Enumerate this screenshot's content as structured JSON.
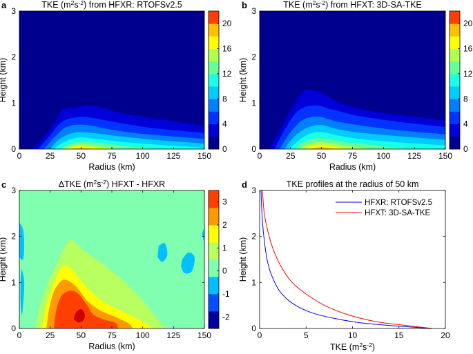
{
  "colors": {
    "jet": [
      "#00008f",
      "#0000d9",
      "#0033ff",
      "#007fff",
      "#00ccff",
      "#19ffe5",
      "#66ff99",
      "#b2ff4c",
      "#ffff00",
      "#ffc000",
      "#ff7f00",
      "#ff3f00",
      "#e50000"
    ],
    "diff": [
      "#0000a0",
      "#0050ff",
      "#00c0ff",
      "#80ffb0",
      "#b8ff60",
      "#ffff00",
      "#ff9900",
      "#ff4000",
      "#cc0000"
    ],
    "hfxr_line": "#0000ff",
    "hfxt_line": "#ff0000"
  },
  "chart_data": [
    {
      "type": "contour",
      "panel_letter": "a",
      "title_pre": "TKE (m",
      "title_sup": "2",
      "title_mid": "s",
      "title_sup2": "-2",
      "title_post": ") from HFXR: RTOFSv2.5",
      "xlabel": "Radius (km)",
      "ylabel": "Height (km)",
      "xlim": [
        0,
        150
      ],
      "ylim": [
        0,
        3
      ],
      "xticks": [
        "0",
        "25",
        "50",
        "75",
        "100",
        "125",
        "150"
      ],
      "yticks": [
        "0",
        "1",
        "2",
        "3"
      ],
      "colorbar_ticks": [
        "0",
        "4",
        "8",
        "12",
        "16",
        "20"
      ],
      "colorbar_range": [
        0,
        22
      ],
      "levels": [
        0,
        2,
        4,
        6,
        8,
        10,
        12,
        14,
        16,
        18,
        20,
        22
      ],
      "contour_tops_km": [
        {
          "level": 2,
          "points": [
            [
              10,
              0
            ],
            [
              18,
              0.2
            ],
            [
              28,
              0.55
            ],
            [
              35,
              0.85
            ],
            [
              45,
              0.9
            ],
            [
              55,
              0.95
            ],
            [
              65,
              0.92
            ],
            [
              80,
              0.8
            ],
            [
              100,
              0.7
            ],
            [
              125,
              0.6
            ],
            [
              150,
              0.5
            ]
          ]
        },
        {
          "level": 4,
          "points": [
            [
              15,
              0
            ],
            [
              25,
              0.3
            ],
            [
              35,
              0.6
            ],
            [
              50,
              0.7
            ],
            [
              65,
              0.65
            ],
            [
              85,
              0.55
            ],
            [
              110,
              0.45
            ],
            [
              150,
              0.35
            ]
          ]
        },
        {
          "level": 6,
          "points": [
            [
              20,
              0
            ],
            [
              30,
              0.3
            ],
            [
              40,
              0.5
            ],
            [
              55,
              0.52
            ],
            [
              75,
              0.42
            ],
            [
              100,
              0.33
            ],
            [
              150,
              0.22
            ]
          ]
        },
        {
          "level": 8,
          "points": [
            [
              25,
              0
            ],
            [
              33,
              0.22
            ],
            [
              45,
              0.36
            ],
            [
              60,
              0.35
            ],
            [
              80,
              0.28
            ],
            [
              110,
              0.2
            ],
            [
              150,
              0.12
            ]
          ]
        },
        {
          "level": 10,
          "points": [
            [
              28,
              0
            ],
            [
              36,
              0.15
            ],
            [
              48,
              0.25
            ],
            [
              62,
              0.22
            ],
            [
              85,
              0.15
            ],
            [
              120,
              0.08
            ],
            [
              150,
              0.03
            ]
          ]
        },
        {
          "level": 12,
          "points": [
            [
              32,
              0
            ],
            [
              40,
              0.1
            ],
            [
              50,
              0.16
            ],
            [
              62,
              0.14
            ],
            [
              85,
              0.07
            ],
            [
              110,
              0
            ]
          ]
        },
        {
          "level": 14,
          "points": [
            [
              35,
              0
            ],
            [
              43,
              0.07
            ],
            [
              50,
              0.1
            ],
            [
              60,
              0.08
            ],
            [
              75,
              0.02
            ],
            [
              80,
              0
            ]
          ]
        },
        {
          "level": 16,
          "points": [
            [
              38,
              0
            ],
            [
              45,
              0.05
            ],
            [
              52,
              0.06
            ],
            [
              62,
              0.03
            ],
            [
              68,
              0
            ]
          ]
        },
        {
          "level": 18,
          "points": [
            [
              41,
              0
            ],
            [
              48,
              0.03
            ],
            [
              56,
              0.02
            ],
            [
              60,
              0
            ]
          ]
        }
      ]
    },
    {
      "type": "contour",
      "panel_letter": "b",
      "title_pre": "TKE (m",
      "title_sup": "2",
      "title_mid": "s",
      "title_sup2": "-2",
      "title_post": ") from HFXT: 3D-SA-TKE",
      "xlabel": "Radius (km)",
      "ylabel": "Height (km)",
      "xlim": [
        0,
        150
      ],
      "ylim": [
        0,
        3
      ],
      "xticks": [
        "0",
        "25",
        "50",
        "75",
        "100",
        "125",
        "150"
      ],
      "yticks": [
        "0",
        "1",
        "2",
        "3"
      ],
      "colorbar_ticks": [
        "0",
        "4",
        "8",
        "12",
        "16",
        "20"
      ],
      "colorbar_range": [
        0,
        22
      ],
      "levels": [
        0,
        2,
        4,
        6,
        8,
        10,
        12,
        14,
        16,
        18,
        20,
        22
      ],
      "contour_tops_km": [
        {
          "level": 2,
          "points": [
            [
              8,
              0
            ],
            [
              15,
              0.35
            ],
            [
              25,
              0.85
            ],
            [
              35,
              1.25
            ],
            [
              42,
              1.28
            ],
            [
              48,
              1.25
            ],
            [
              55,
              1.15
            ],
            [
              65,
              1.0
            ],
            [
              80,
              0.88
            ],
            [
              100,
              0.78
            ],
            [
              125,
              0.7
            ],
            [
              150,
              0.62
            ]
          ]
        },
        {
          "level": 4,
          "points": [
            [
              12,
              0
            ],
            [
              22,
              0.5
            ],
            [
              32,
              0.85
            ],
            [
              45,
              0.95
            ],
            [
              60,
              0.85
            ],
            [
              80,
              0.72
            ],
            [
              110,
              0.6
            ],
            [
              150,
              0.48
            ]
          ]
        },
        {
          "level": 6,
          "points": [
            [
              16,
              0
            ],
            [
              26,
              0.4
            ],
            [
              36,
              0.65
            ],
            [
              48,
              0.7
            ],
            [
              62,
              0.6
            ],
            [
              85,
              0.5
            ],
            [
              115,
              0.4
            ],
            [
              150,
              0.32
            ]
          ]
        },
        {
          "level": 8,
          "points": [
            [
              20,
              0
            ],
            [
              29,
              0.3
            ],
            [
              40,
              0.48
            ],
            [
              50,
              0.52
            ],
            [
              65,
              0.42
            ],
            [
              90,
              0.33
            ],
            [
              150,
              0.2
            ]
          ]
        },
        {
          "level": 10,
          "points": [
            [
              24,
              0
            ],
            [
              32,
              0.2
            ],
            [
              42,
              0.35
            ],
            [
              52,
              0.36
            ],
            [
              68,
              0.27
            ],
            [
              95,
              0.18
            ],
            [
              150,
              0.08
            ]
          ]
        },
        {
          "level": 12,
          "points": [
            [
              28,
              0
            ],
            [
              35,
              0.14
            ],
            [
              45,
              0.23
            ],
            [
              55,
              0.22
            ],
            [
              70,
              0.15
            ],
            [
              100,
              0.06
            ],
            [
              120,
              0
            ]
          ]
        },
        {
          "level": 14,
          "points": [
            [
              32,
              0
            ],
            [
              38,
              0.1
            ],
            [
              48,
              0.15
            ],
            [
              58,
              0.12
            ],
            [
              75,
              0.05
            ],
            [
              90,
              0
            ]
          ]
        },
        {
          "level": 16,
          "points": [
            [
              36,
              0
            ],
            [
              42,
              0.06
            ],
            [
              50,
              0.09
            ],
            [
              60,
              0.05
            ],
            [
              72,
              0
            ]
          ]
        },
        {
          "level": 18,
          "points": [
            [
              40,
              0
            ],
            [
              45,
              0.03
            ],
            [
              50,
              0.04
            ],
            [
              57,
              0.02
            ],
            [
              62,
              0
            ]
          ]
        }
      ]
    },
    {
      "type": "contour",
      "panel_letter": "c",
      "title_pre": "ΔTKE (m",
      "title_sup": "2",
      "title_mid": "s",
      "title_sup2": "-2",
      "title_post": ") HFXT - HFXR",
      "xlabel": "Radius (km)",
      "ylabel": "Height (km)",
      "xlim": [
        0,
        150
      ],
      "ylim": [
        0,
        3
      ],
      "xticks": [
        "0",
        "25",
        "50",
        "75",
        "100",
        "125",
        "150"
      ],
      "yticks": [
        "0",
        "1",
        "2",
        "3"
      ],
      "colorbar_ticks": [
        "-2",
        "-1",
        "0",
        "1",
        "2",
        "3"
      ],
      "colorbar_range": [
        -2.5,
        3.5
      ],
      "background_level": 0
    },
    {
      "type": "line",
      "panel_letter": "d",
      "title": "TKE profiles at the radius of 50 km",
      "xlabel_pre": "TKE (m",
      "xlabel_sup": "2",
      "xlabel_mid": "s",
      "xlabel_sup2": "-2",
      "xlabel_post": ")",
      "ylabel": "Height (km)",
      "xlim": [
        0,
        20
      ],
      "ylim": [
        0,
        3
      ],
      "xticks": [
        "0",
        "5",
        "10",
        "15",
        "20"
      ],
      "yticks": [
        "0",
        "1",
        "2",
        "3"
      ],
      "legend_position": "top-right",
      "series": [
        {
          "name": "HFXR: RTOFSv2.5",
          "color": "#0000ff",
          "points": [
            [
              18.5,
              0
            ],
            [
              15,
              0.05
            ],
            [
              11,
              0.12
            ],
            [
              8,
              0.22
            ],
            [
              5.5,
              0.35
            ],
            [
              3.5,
              0.55
            ],
            [
              2.2,
              0.8
            ],
            [
              1.3,
              1.15
            ],
            [
              0.8,
              1.5
            ],
            [
              0.45,
              2.0
            ],
            [
              0.25,
              2.5
            ],
            [
              0.15,
              3.0
            ]
          ]
        },
        {
          "name": "HFXT: 3D-SA-TKE",
          "color": "#ff0000",
          "points": [
            [
              18.6,
              0
            ],
            [
              16,
              0.06
            ],
            [
              12.5,
              0.15
            ],
            [
              9.5,
              0.3
            ],
            [
              7,
              0.5
            ],
            [
              5,
              0.75
            ],
            [
              3.5,
              1.0
            ],
            [
              2.3,
              1.35
            ],
            [
              1.5,
              1.7
            ],
            [
              0.9,
              2.1
            ],
            [
              0.5,
              2.5
            ],
            [
              0.3,
              3.0
            ]
          ]
        }
      ]
    }
  ]
}
